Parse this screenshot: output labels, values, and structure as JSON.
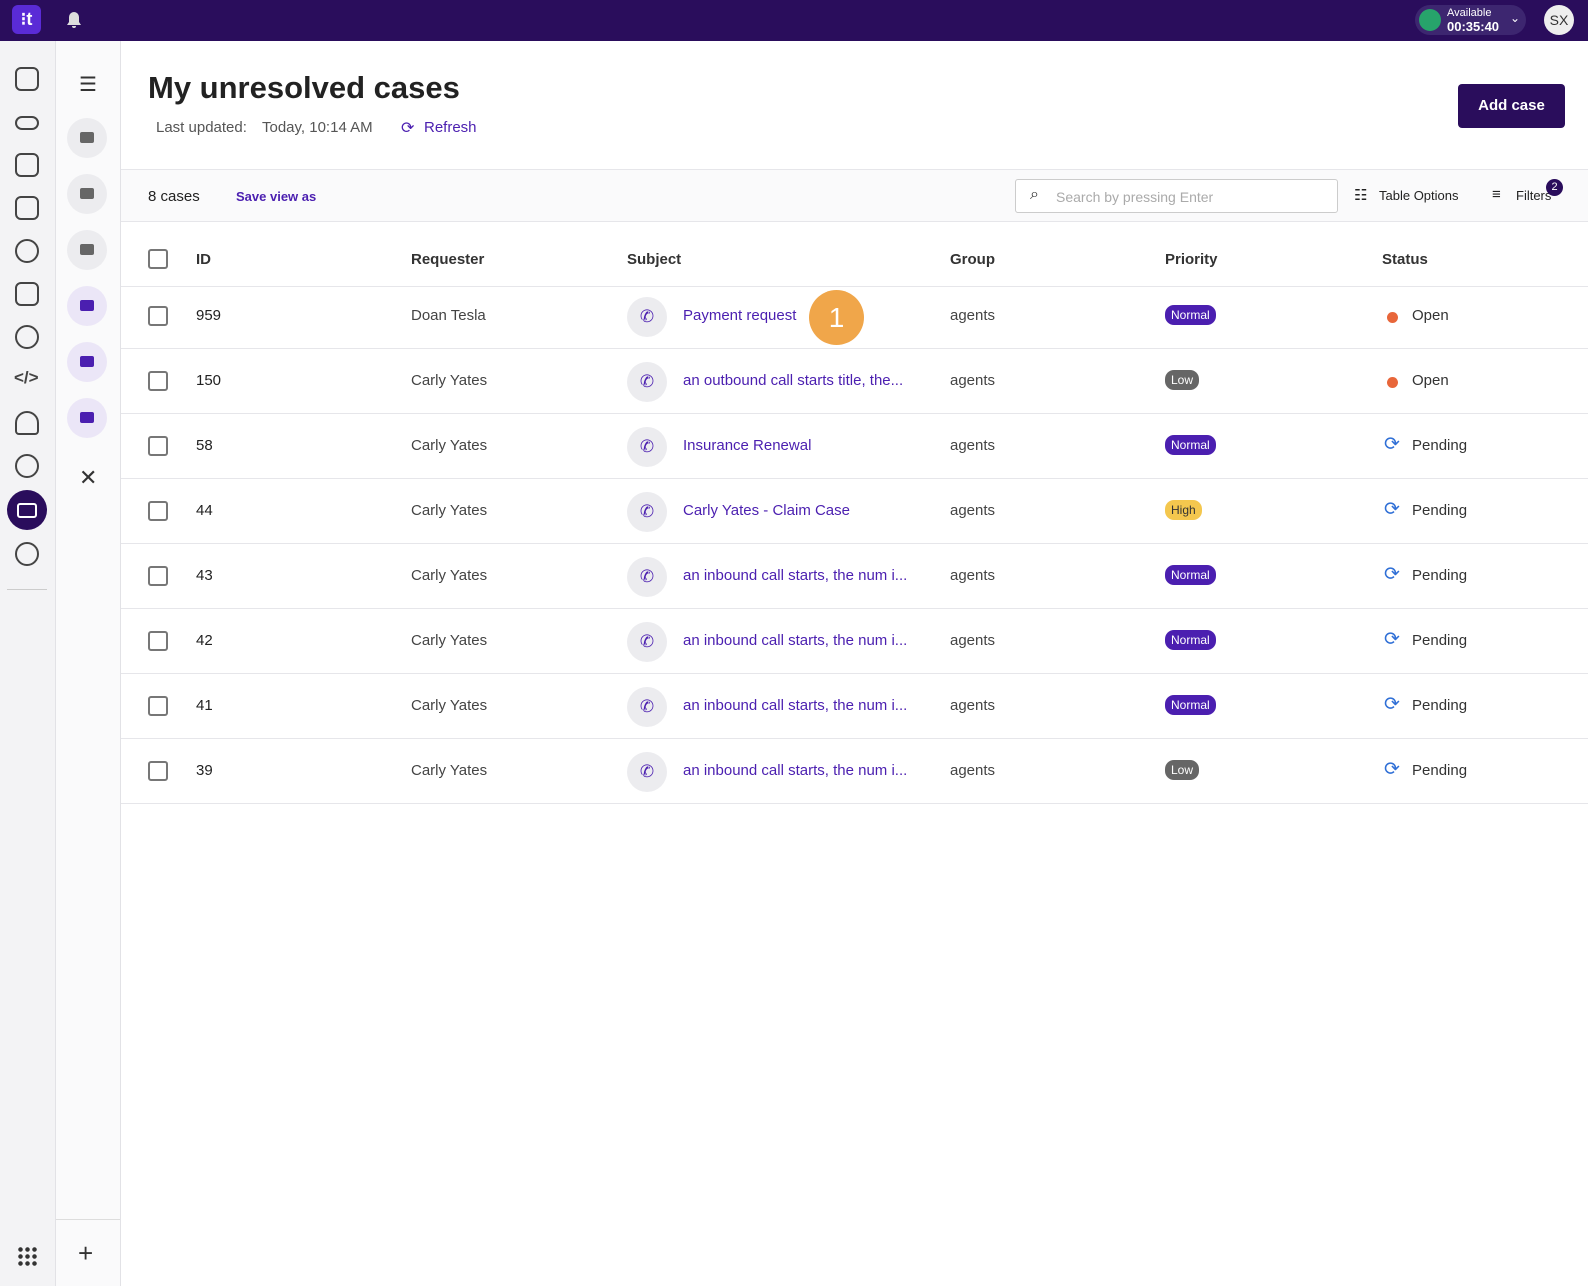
{
  "topbar": {
    "status": "Available",
    "timer": "00:35:40",
    "avatar": "SX"
  },
  "header": {
    "title": "My unresolved cases",
    "last_updated_label": "Last updated:",
    "last_updated": "Today, 10:14 AM",
    "refresh": "Refresh",
    "add_case": "Add case"
  },
  "toolbar": {
    "count": "8 cases",
    "save_view": "Save view as",
    "search_placeholder": "Search by pressing Enter",
    "table_options": "Table Options",
    "filters": "Filters",
    "filters_badge": "2"
  },
  "table": {
    "columns": [
      "ID",
      "Requester",
      "Subject",
      "Group",
      "Priority",
      "Status"
    ],
    "rows": [
      [
        "959",
        "Doan Tesla",
        "Payment request",
        "agents",
        "Normal",
        "Open"
      ],
      [
        "150",
        "Carly Yates",
        "an outbound call starts title, the...",
        "agents",
        "Low",
        "Open"
      ],
      [
        "58",
        "Carly Yates",
        "Insurance Renewal",
        "agents",
        "Normal",
        "Pending"
      ],
      [
        "44",
        "Carly Yates",
        "Carly Yates - Claim Case",
        "agents",
        "High",
        "Pending"
      ],
      [
        "43",
        "Carly Yates",
        "an inbound call starts, the num i...",
        "agents",
        "Normal",
        "Pending"
      ],
      [
        "42",
        "Carly Yates",
        "an inbound call starts, the num i...",
        "agents",
        "Normal",
        "Pending"
      ],
      [
        "41",
        "Carly Yates",
        "an inbound call starts, the num i...",
        "agents",
        "Normal",
        "Pending"
      ],
      [
        "39",
        "Carly Yates",
        "an inbound call starts, the num i...",
        "agents",
        "Low",
        "Pending"
      ]
    ]
  },
  "annotation": "1"
}
